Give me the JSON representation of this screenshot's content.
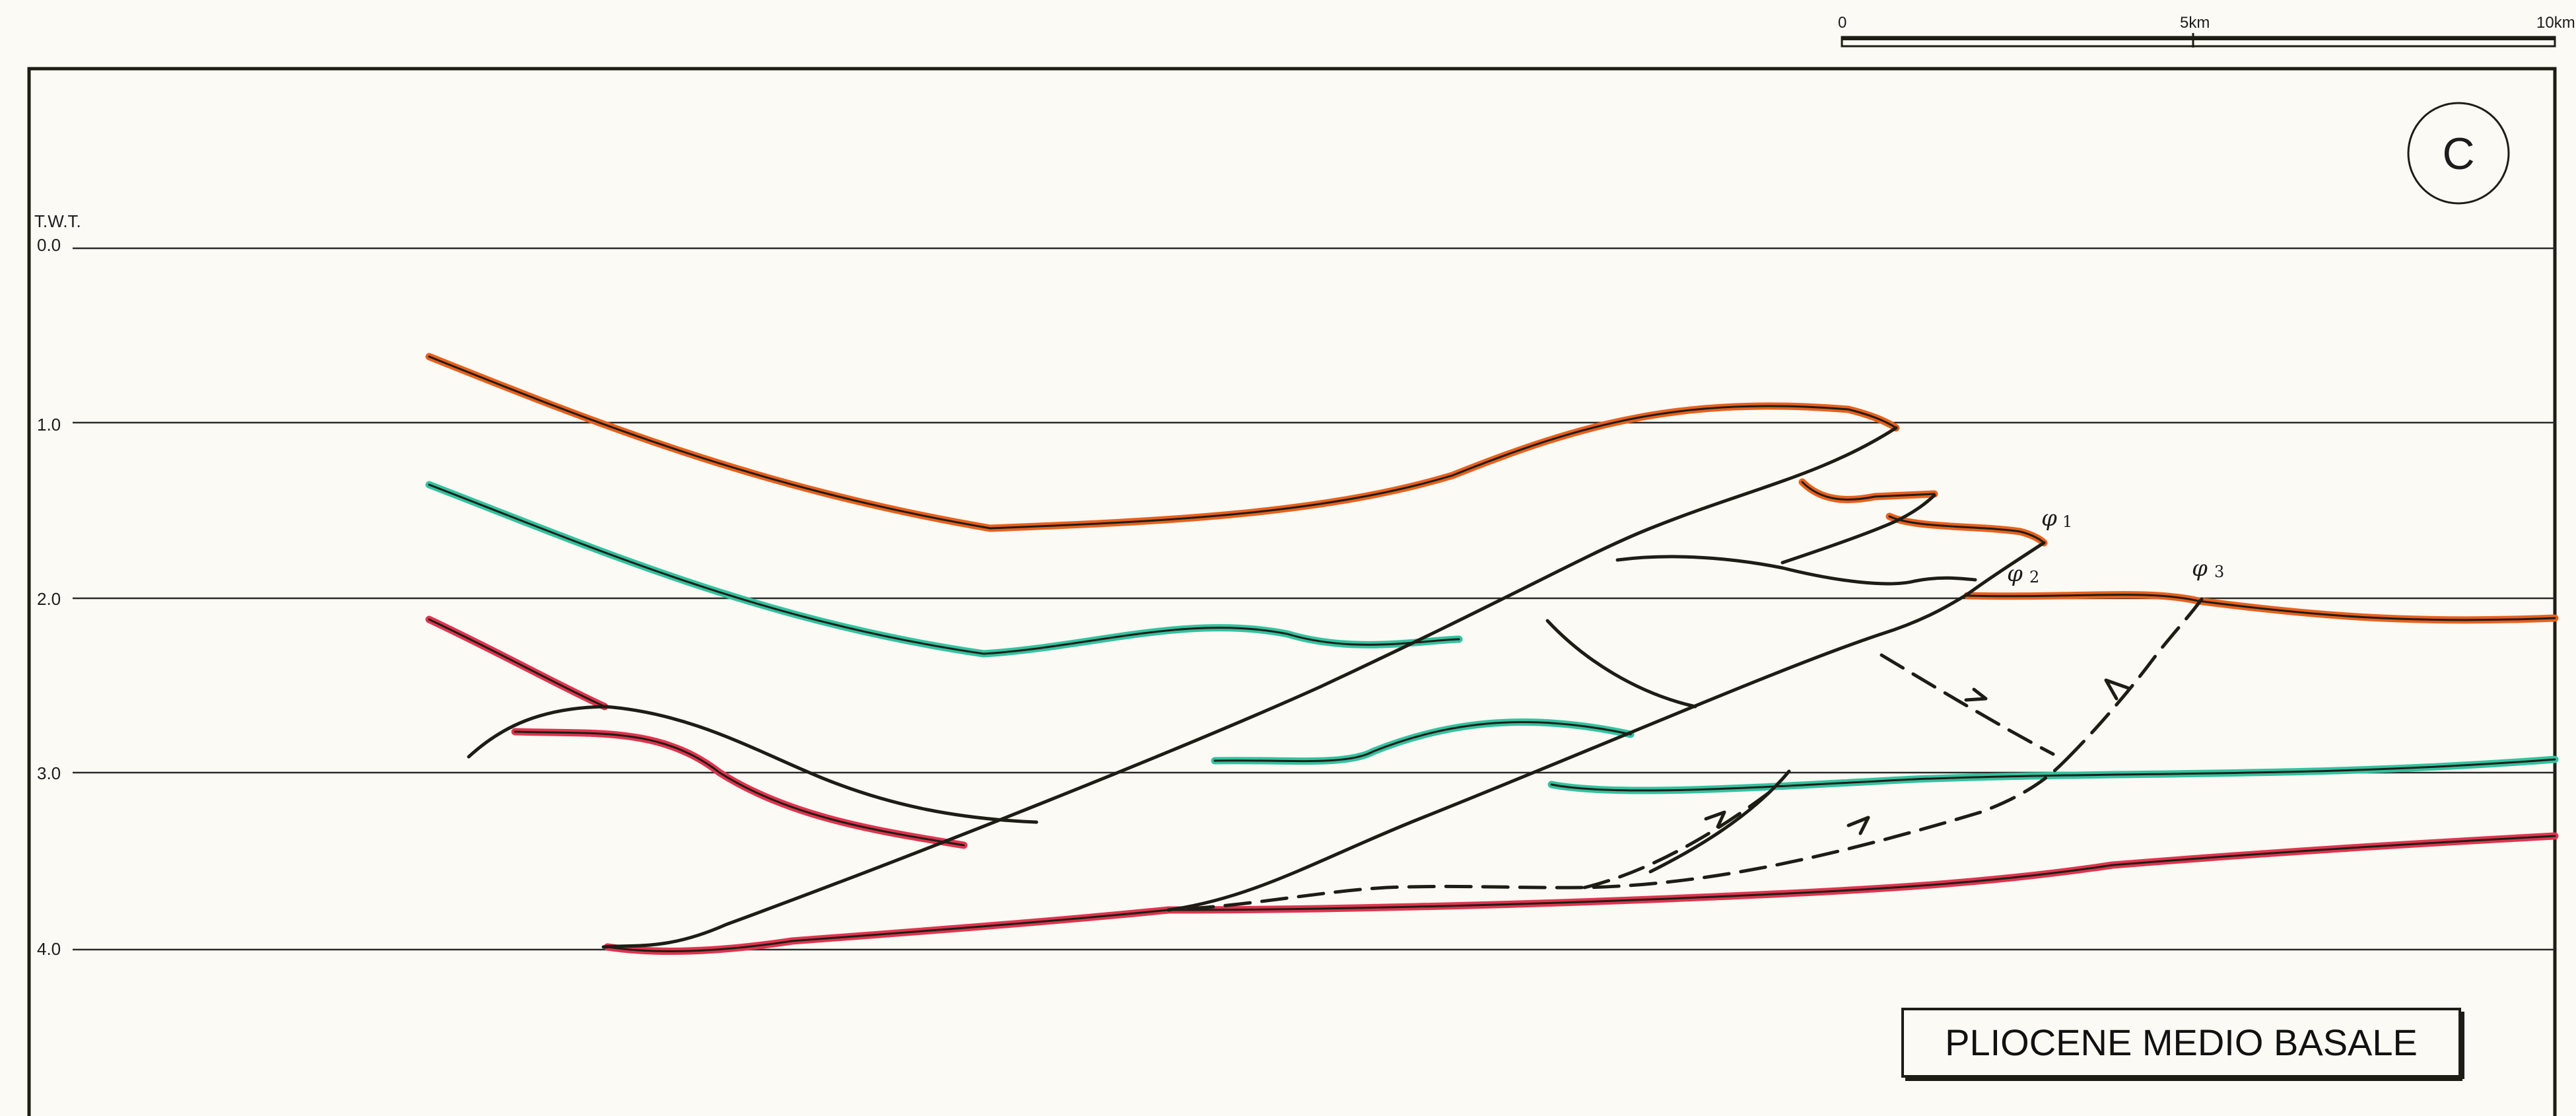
{
  "scale_bar": {
    "ticks": [
      "0",
      "5km",
      "10km"
    ]
  },
  "panel_letter": "C",
  "twt_axis": {
    "title": "T.W.T.",
    "ticks": [
      "0.0",
      "1.0",
      "2.0",
      "3.0",
      "4.0"
    ]
  },
  "faults": [
    {
      "symbol": "φ",
      "index": "1"
    },
    {
      "symbol": "φ",
      "index": "2"
    },
    {
      "symbol": "φ",
      "index": "3"
    }
  ],
  "title_box": "PLIOCENE MEDIO BASALE",
  "colors": {
    "orange_horizon": "#e8601c",
    "green_horizon": "#33c2a0",
    "red_horizon": "#e0344e",
    "linework": "#1d1d16",
    "paper": "#fbfaf4"
  }
}
